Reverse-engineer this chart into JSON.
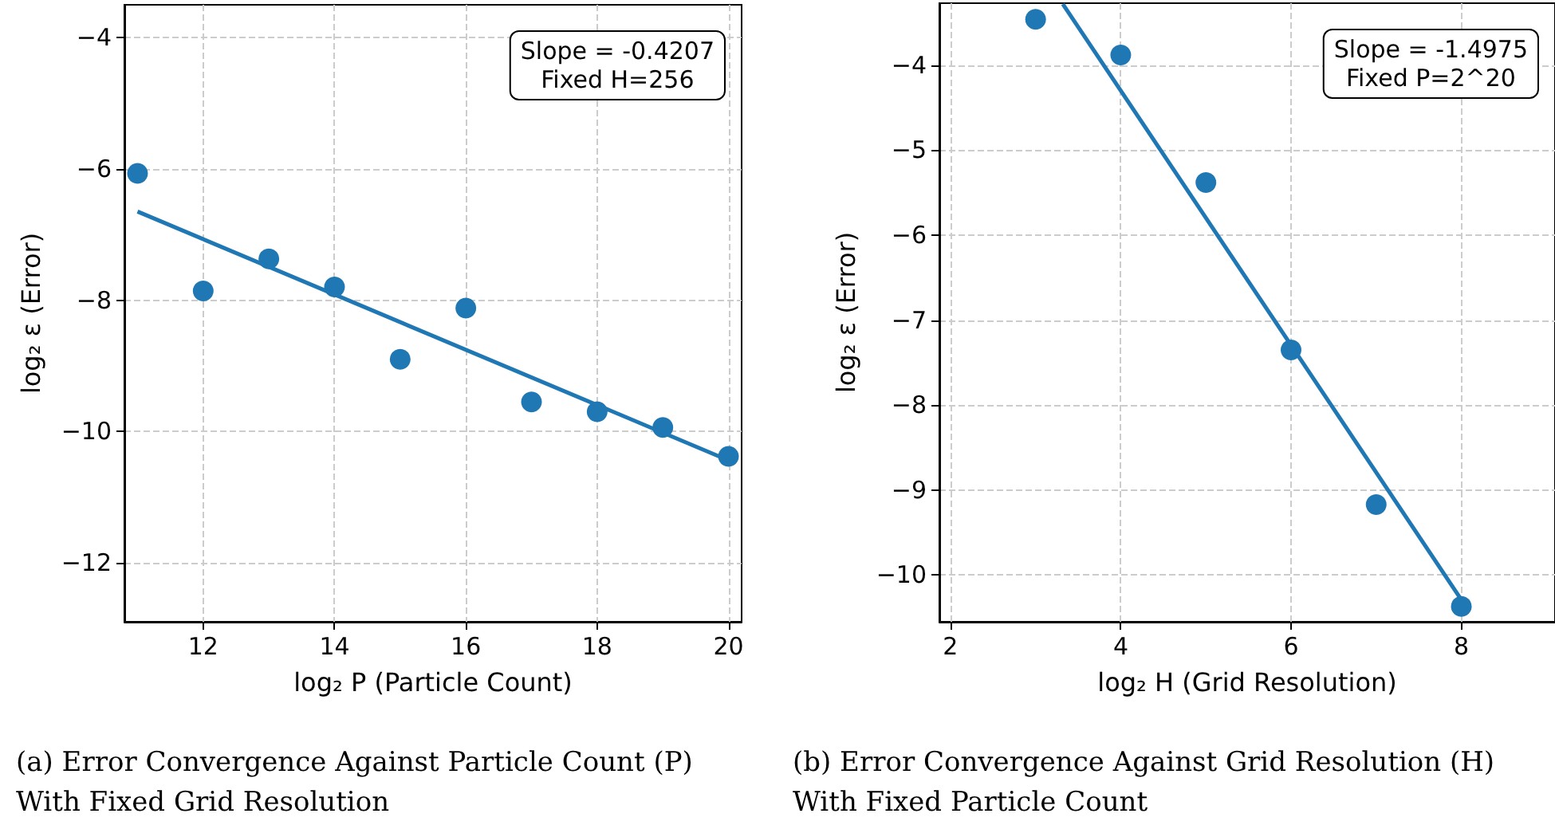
{
  "chart_data": [
    {
      "type": "scatter",
      "title": "(a) Error Convergence Against Particle Count (P) With Fixed Grid Resolution",
      "xlabel": "log₂ P (Particle Count)",
      "ylabel": "log₂ ε (Error)",
      "annotations": [
        "Slope = -0.4207",
        "Fixed H=256"
      ],
      "xlim": [
        10.8,
        20.2
      ],
      "xticks": [
        12,
        14,
        16,
        18,
        20
      ],
      "ylim": [
        -12.9,
        -3.5
      ],
      "yticks": [
        -12,
        -10,
        -8,
        -6,
        -4
      ],
      "grid": true,
      "series": [
        {
          "marker": "circle",
          "color": "#1f77b4",
          "x": [
            11,
            12,
            13,
            14,
            15,
            16,
            17,
            18,
            19,
            20
          ],
          "values": [
            -6.07,
            -7.86,
            -7.37,
            -7.8,
            -8.9,
            -8.12,
            -9.55,
            -9.7,
            -9.94,
            -10.38
          ]
        },
        {
          "type": "line",
          "marker": "none",
          "color": "#1f77b4",
          "line_style": "solid",
          "x": [
            11,
            20
          ],
          "values": [
            -6.65,
            -10.44
          ]
        }
      ]
    },
    {
      "type": "scatter",
      "title": "(b) Error Convergence Against Grid Resolution (H) With Fixed Particle Count",
      "xlabel": "log₂ H (Grid Resolution)",
      "ylabel": "log₂ ε (Error)",
      "annotations": [
        "Slope = -1.4975",
        "Fixed P=2^20"
      ],
      "xlim": [
        1.87,
        9.1
      ],
      "xticks": [
        2,
        4,
        6,
        8
      ],
      "ylim": [
        -10.55,
        -3.27
      ],
      "yticks": [
        -10,
        -9,
        -8,
        -7,
        -6,
        -5,
        -4
      ],
      "grid": true,
      "series": [
        {
          "marker": "circle",
          "color": "#1f77b4",
          "x": [
            3,
            4,
            5,
            6,
            7,
            8
          ],
          "values": [
            -3.46,
            -3.88,
            -5.38,
            -7.35,
            -9.17,
            -10.37
          ]
        },
        {
          "type": "line",
          "marker": "none",
          "color": "#1f77b4",
          "line_style": "solid",
          "x": [
            3.32,
            8
          ],
          "values": [
            -3.28,
            -10.29
          ]
        }
      ]
    }
  ]
}
